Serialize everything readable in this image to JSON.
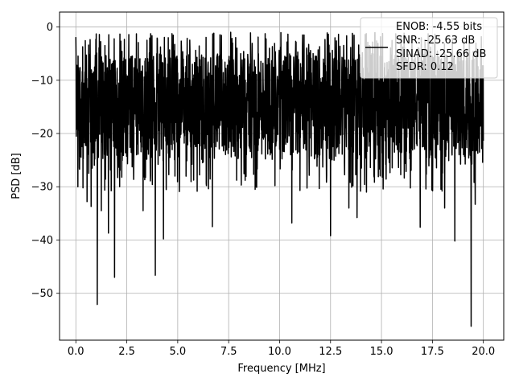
{
  "chart_data": {
    "type": "line",
    "title": "",
    "xlabel": "Frequency [MHz]",
    "ylabel": "PSD [dB]",
    "xlim": [
      -0.8,
      21.0
    ],
    "ylim": [
      -58.8,
      2.8
    ],
    "xticks": [
      0.0,
      2.5,
      5.0,
      7.5,
      10.0,
      12.5,
      15.0,
      17.5,
      20.0
    ],
    "xtick_labels": [
      "0.0",
      "2.5",
      "5.0",
      "7.5",
      "10.0",
      "12.5",
      "15.0",
      "17.5",
      "20.0"
    ],
    "yticks": [
      0,
      -10,
      -20,
      -30,
      -40,
      -50
    ],
    "ytick_labels": [
      "0",
      "−10",
      "−20",
      "−30",
      "−40",
      "−50"
    ],
    "grid": true,
    "legend_position": "upper-right",
    "legend_lines": [
      "ENOB: -4.55 bits",
      "SNR: -25.63 dB",
      "SINAD: -25.66 dB",
      "SFDR: 0.12"
    ],
    "series": [
      {
        "color": "#000000",
        "x_start": 0.0,
        "x_end": 20.0,
        "typical_range": [
          -25,
          -5
        ],
        "spikes": [
          {
            "x": 0.0,
            "y": -1.9
          },
          {
            "x": 0.1,
            "y": -30.0
          },
          {
            "x": 0.35,
            "y": -30.2
          },
          {
            "x": 0.55,
            "y": -32.8
          },
          {
            "x": 0.75,
            "y": -33.7
          },
          {
            "x": 1.05,
            "y": -52.1
          },
          {
            "x": 1.25,
            "y": -34.5
          },
          {
            "x": 1.6,
            "y": -38.7
          },
          {
            "x": 1.9,
            "y": -47.0
          },
          {
            "x": 2.15,
            "y": -30.0
          },
          {
            "x": 3.3,
            "y": -34.5
          },
          {
            "x": 3.9,
            "y": -46.6
          },
          {
            "x": 4.3,
            "y": -39.8
          },
          {
            "x": 6.7,
            "y": -37.5
          },
          {
            "x": 7.6,
            "y": -1.0
          },
          {
            "x": 9.5,
            "y": -4.0
          },
          {
            "x": 10.6,
            "y": -36.8
          },
          {
            "x": 11.2,
            "y": -1.5
          },
          {
            "x": 12.5,
            "y": -39.2
          },
          {
            "x": 13.4,
            "y": -34.0
          },
          {
            "x": 13.8,
            "y": -35.8
          },
          {
            "x": 14.2,
            "y": -1.4
          },
          {
            "x": 16.9,
            "y": -37.6
          },
          {
            "x": 18.1,
            "y": -34.0
          },
          {
            "x": 18.6,
            "y": -40.2
          },
          {
            "x": 19.4,
            "y": -56.2
          },
          {
            "x": 19.6,
            "y": -33.3
          }
        ]
      }
    ]
  }
}
